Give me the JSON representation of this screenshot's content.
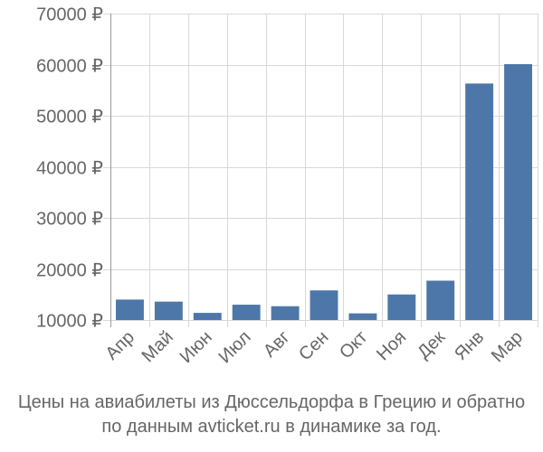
{
  "chart_data": {
    "type": "bar",
    "categories": [
      "Апр",
      "Май",
      "Июн",
      "Июл",
      "Авг",
      "Сен",
      "Окт",
      "Ноя",
      "Дек",
      "Янв",
      "Мар"
    ],
    "values": [
      14000,
      13600,
      11400,
      13000,
      12700,
      15800,
      11300,
      15000,
      17700,
      56300,
      60100
    ],
    "yticks": [
      "10000 ₽",
      "20000 ₽",
      "30000 ₽",
      "40000 ₽",
      "50000 ₽",
      "60000 ₽",
      "70000 ₽"
    ],
    "ytick_values": [
      10000,
      20000,
      30000,
      40000,
      50000,
      60000,
      70000
    ],
    "ylim": [
      10000,
      70000
    ],
    "grid": true,
    "bar_color": "#4d77a8",
    "grid_color": "#d8d8d8"
  },
  "caption": {
    "line1": "Цены на авиабилеты из Дюссельдорфа в Грецию и обратно",
    "line2": "по данным avticket.ru в динамике за год."
  }
}
